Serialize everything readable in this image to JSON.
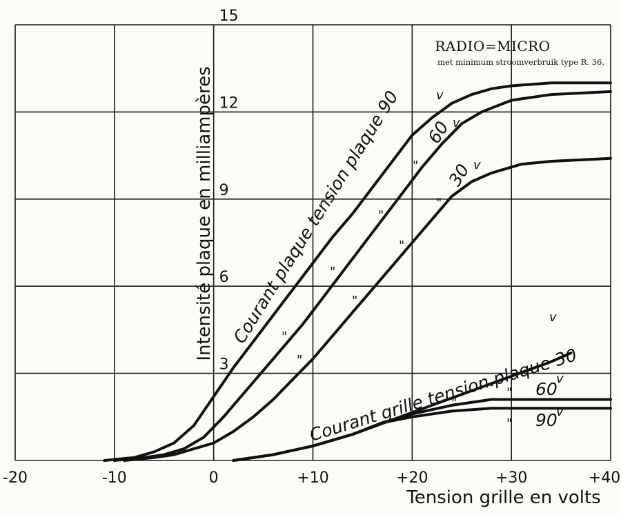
{
  "chart_data": {
    "type": "line",
    "title": "RADIO=MICRO",
    "subtitle": "met minimum stroomverbruik type R. 36.",
    "xlabel": "Tension grille en volts",
    "ylabel": "Intensité plaque en milliampères",
    "xlim": [
      -20,
      40
    ],
    "ylim": [
      0,
      15
    ],
    "x_ticks": [
      "-20",
      "-10",
      "0",
      "+10",
      "+20",
      "+30",
      "+40"
    ],
    "y_ticks": [
      "3",
      "6",
      "9",
      "12",
      "15"
    ],
    "grid": true,
    "series": [
      {
        "name": "Courant plaque tension plaque 90v",
        "x": [
          -11,
          -8,
          -6,
          -4,
          -2,
          0,
          2,
          4,
          6,
          8,
          10,
          12,
          14,
          16,
          18,
          20,
          22,
          24,
          26,
          28,
          30,
          34,
          40
        ],
        "y": [
          0,
          0.1,
          0.3,
          0.6,
          1.2,
          2.2,
          3.2,
          4.1,
          5.0,
          5.9,
          6.8,
          7.7,
          8.5,
          9.4,
          10.3,
          11.2,
          11.8,
          12.3,
          12.6,
          12.8,
          12.9,
          13.0,
          13.0
        ]
      },
      {
        "name": "Courant plaque tension plaque 60v",
        "x": [
          -10,
          -7,
          -5,
          -3,
          -1,
          1,
          3,
          5,
          7,
          9,
          11,
          13,
          15,
          17,
          19,
          21,
          23,
          25,
          27,
          30,
          34,
          40
        ],
        "y": [
          0,
          0.1,
          0.2,
          0.4,
          0.8,
          1.5,
          2.3,
          3.1,
          3.9,
          4.7,
          5.6,
          6.5,
          7.4,
          8.3,
          9.2,
          10.1,
          10.9,
          11.6,
          12.0,
          12.4,
          12.6,
          12.7
        ]
      },
      {
        "name": "Courant plaque tension plaque 30v",
        "x": [
          -9,
          -6,
          -4,
          -2,
          0,
          2,
          4,
          6,
          8,
          10,
          12,
          14,
          16,
          18,
          20,
          22,
          24,
          26,
          28,
          31,
          34,
          40
        ],
        "y": [
          0,
          0.1,
          0.2,
          0.4,
          0.6,
          1.0,
          1.5,
          2.1,
          2.8,
          3.5,
          4.3,
          5.1,
          5.9,
          6.7,
          7.5,
          8.3,
          9.1,
          9.6,
          9.9,
          10.2,
          10.3,
          10.4
        ]
      },
      {
        "name": "Courant grille tension plaque 30v",
        "x": [
          2,
          6,
          10,
          14,
          18,
          22,
          26,
          30,
          34,
          36
        ],
        "y": [
          0,
          0.2,
          0.5,
          0.9,
          1.4,
          1.9,
          2.4,
          2.9,
          3.4,
          3.7
        ]
      },
      {
        "name": "Courant grille tension plaque 60v",
        "x": [
          2,
          6,
          10,
          14,
          17,
          20,
          24,
          28,
          32,
          36,
          40
        ],
        "y": [
          0,
          0.2,
          0.5,
          0.9,
          1.3,
          1.6,
          1.9,
          2.1,
          2.1,
          2.1,
          2.1
        ]
      },
      {
        "name": "Courant grille tension plaque 90v",
        "x": [
          2,
          6,
          10,
          14,
          17,
          20,
          24,
          28,
          32,
          36,
          40
        ],
        "y": [
          0,
          0.2,
          0.5,
          0.9,
          1.3,
          1.5,
          1.7,
          1.8,
          1.8,
          1.8,
          1.8
        ]
      }
    ],
    "curve_labels": {
      "plate": "Courant plaque  tension plaque 90",
      "grid": "Courant grille tension.plaque 30",
      "v60": "60",
      "v30": "30",
      "g60": "60",
      "g90": "90",
      "volt_mark": "v",
      "ditto": "\""
    }
  }
}
